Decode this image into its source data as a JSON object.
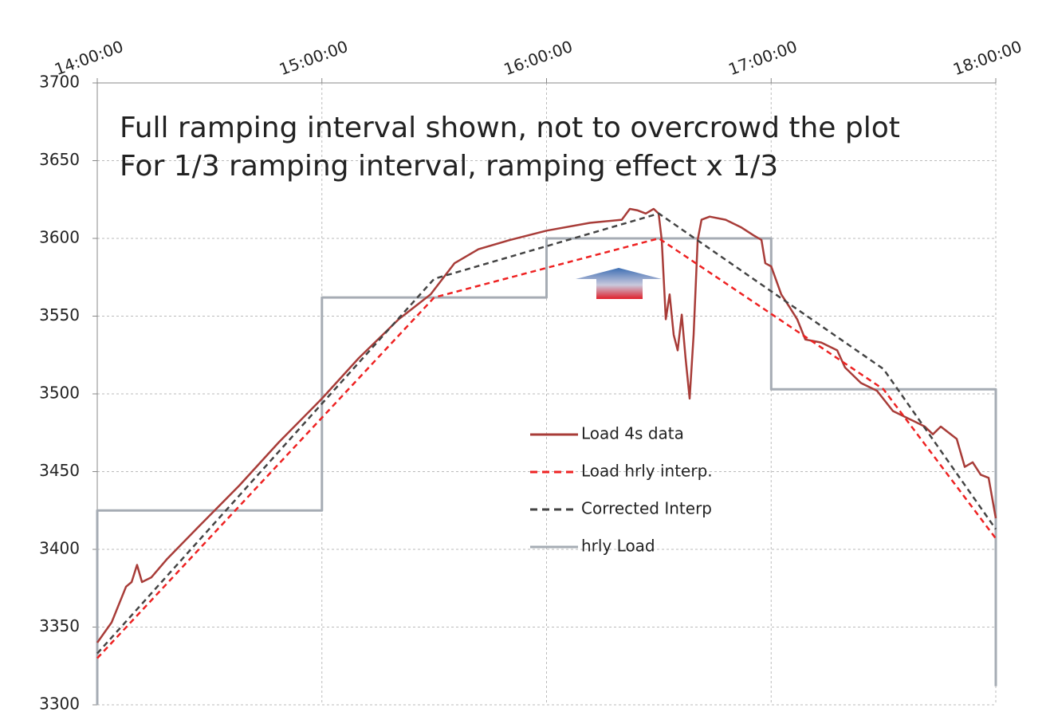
{
  "chart_data": {
    "type": "line",
    "annotations": [
      "Full ramping interval shown, not to overcrowd the plot",
      "For 1/3 ramping interval, ramping effect x 1/3"
    ],
    "xlim": [
      14,
      18
    ],
    "xticks": [
      {
        "value": 14,
        "label": "14:00:00"
      },
      {
        "value": 15,
        "label": "15:00:00"
      },
      {
        "value": 16,
        "label": "16:00:00"
      },
      {
        "value": 17,
        "label": "17:00:00"
      },
      {
        "value": 18,
        "label": "18:00:00"
      }
    ],
    "ylim": [
      3300,
      3700
    ],
    "yticks": [
      3300,
      3350,
      3400,
      3450,
      3500,
      3550,
      3600,
      3650,
      3700
    ],
    "grid": true,
    "legend": "center",
    "series": [
      {
        "name": "Load 4s data",
        "color": "#a83c38",
        "style": "solid",
        "x": [
          14.0,
          14.064,
          14.128,
          14.153,
          14.177,
          14.199,
          14.241,
          14.312,
          14.454,
          14.632,
          14.809,
          15.0,
          15.164,
          15.342,
          15.484,
          15.59,
          15.697,
          15.838,
          16.0,
          16.193,
          16.335,
          16.371,
          16.406,
          16.442,
          16.477,
          16.499,
          16.513,
          16.531,
          16.548,
          16.566,
          16.584,
          16.602,
          16.619,
          16.637,
          16.655,
          16.673,
          16.69,
          16.726,
          16.797,
          16.868,
          16.921,
          16.957,
          16.974,
          17.0,
          17.045,
          17.081,
          17.116,
          17.152,
          17.223,
          17.294,
          17.329,
          17.4,
          17.471,
          17.542,
          17.613,
          17.684,
          17.72,
          17.755,
          17.826,
          17.862,
          17.897,
          17.933,
          17.968,
          18.0
        ],
        "values": [
          3340,
          3353,
          3376,
          3379,
          3390,
          3379,
          3382,
          3394,
          3415,
          3441,
          3469,
          3497,
          3523,
          3548,
          3564,
          3584,
          3593,
          3599,
          3605,
          3610,
          3612,
          3619,
          3618,
          3616,
          3619,
          3616,
          3599,
          3548,
          3564,
          3538,
          3528,
          3551,
          3523,
          3497,
          3538,
          3599,
          3612,
          3614,
          3612,
          3607,
          3602,
          3599,
          3584,
          3582,
          3564,
          3556,
          3548,
          3535,
          3533,
          3528,
          3517,
          3507,
          3502,
          3489,
          3484,
          3479,
          3474,
          3479,
          3471,
          3453,
          3456,
          3448,
          3446,
          3420
        ]
      },
      {
        "name": "Load hrly interp.",
        "color": "#ee2222",
        "style": "dashed",
        "x": [
          14,
          15.5,
          16.5,
          17.5,
          18
        ],
        "values": [
          3330,
          3562,
          3600,
          3503,
          3407
        ]
      },
      {
        "name": "Corrected Interp",
        "color": "#444444",
        "style": "dashed",
        "x": [
          14,
          15.5,
          16.5,
          17.5,
          18
        ],
        "values": [
          3333,
          3574,
          3616,
          3516,
          3413
        ]
      },
      {
        "name": "hrly Load",
        "color": "#a6acb4",
        "style": "solid",
        "x": [
          14,
          14,
          15,
          15,
          16,
          16,
          17,
          17,
          18,
          18
        ],
        "values": [
          3300,
          3425,
          3425,
          3562,
          3562,
          3600,
          3600,
          3503,
          3503,
          3312
        ]
      }
    ]
  }
}
